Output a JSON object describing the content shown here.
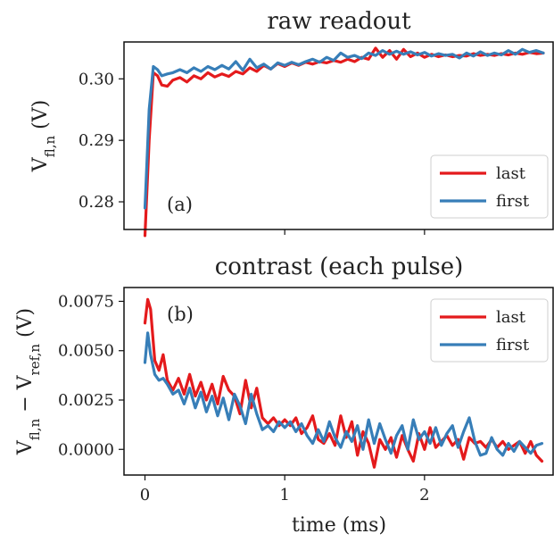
{
  "colors": {
    "last": "#e41a1c",
    "first": "#377eb8"
  },
  "chart_data": [
    {
      "type": "line",
      "title": "raw readout",
      "ylabel": "V_{fl,n} (V)",
      "panel_label": "(a)",
      "xlim": [
        -0.15,
        2.92
      ],
      "ylim": [
        0.2755,
        0.306
      ],
      "yticks": [
        0.28,
        0.29,
        0.3
      ],
      "ytick_labels": [
        "0.28",
        "0.29",
        "0.30"
      ],
      "xticks": [
        0,
        1,
        2
      ],
      "legend": {
        "placement": "lower-right",
        "entries": [
          "last",
          "first"
        ]
      },
      "series": [
        {
          "name": "last",
          "color": "#e41a1c",
          "x": [
            0.0,
            0.03,
            0.06,
            0.09,
            0.12,
            0.16,
            0.2,
            0.25,
            0.3,
            0.35,
            0.4,
            0.45,
            0.5,
            0.55,
            0.6,
            0.65,
            0.7,
            0.75,
            0.8,
            0.85,
            0.9,
            0.95,
            1.0,
            1.05,
            1.1,
            1.15,
            1.2,
            1.25,
            1.3,
            1.35,
            1.4,
            1.45,
            1.5,
            1.55,
            1.6,
            1.65,
            1.7,
            1.75,
            1.8,
            1.85,
            1.9,
            1.95,
            2.0,
            2.05,
            2.1,
            2.15,
            2.2,
            2.25,
            2.3,
            2.35,
            2.4,
            2.45,
            2.5,
            2.55,
            2.6,
            2.65,
            2.7,
            2.75,
            2.8,
            2.85
          ],
          "y": [
            0.2745,
            0.29,
            0.301,
            0.3005,
            0.299,
            0.2988,
            0.2998,
            0.3002,
            0.2995,
            0.3005,
            0.3,
            0.301,
            0.3003,
            0.3008,
            0.3004,
            0.3012,
            0.3008,
            0.3018,
            0.3012,
            0.3022,
            0.3016,
            0.3025,
            0.302,
            0.3026,
            0.3022,
            0.3027,
            0.3024,
            0.3028,
            0.3026,
            0.303,
            0.3027,
            0.3032,
            0.3028,
            0.3035,
            0.3032,
            0.305,
            0.3035,
            0.3046,
            0.3032,
            0.3048,
            0.3036,
            0.3042,
            0.3035,
            0.304,
            0.3036,
            0.3039,
            0.3036,
            0.3038,
            0.3037,
            0.3041,
            0.3038,
            0.304,
            0.3038,
            0.3041,
            0.3039,
            0.3042,
            0.304,
            0.3043,
            0.3041,
            0.3042
          ]
        },
        {
          "name": "first",
          "color": "#377eb8",
          "x": [
            0.0,
            0.03,
            0.06,
            0.09,
            0.12,
            0.16,
            0.2,
            0.25,
            0.3,
            0.35,
            0.4,
            0.45,
            0.5,
            0.55,
            0.6,
            0.65,
            0.7,
            0.75,
            0.8,
            0.85,
            0.9,
            0.95,
            1.0,
            1.05,
            1.1,
            1.15,
            1.2,
            1.25,
            1.3,
            1.35,
            1.4,
            1.45,
            1.5,
            1.55,
            1.6,
            1.65,
            1.7,
            1.75,
            1.8,
            1.85,
            1.9,
            1.95,
            2.0,
            2.05,
            2.1,
            2.15,
            2.2,
            2.25,
            2.3,
            2.35,
            2.4,
            2.45,
            2.5,
            2.55,
            2.6,
            2.65,
            2.7,
            2.75,
            2.8,
            2.85
          ],
          "y": [
            0.279,
            0.295,
            0.302,
            0.3015,
            0.3005,
            0.3008,
            0.301,
            0.3015,
            0.301,
            0.3018,
            0.3012,
            0.302,
            0.3015,
            0.3022,
            0.3016,
            0.3028,
            0.3014,
            0.3032,
            0.3018,
            0.3024,
            0.3016,
            0.3026,
            0.3022,
            0.3027,
            0.3023,
            0.3028,
            0.3032,
            0.3027,
            0.3035,
            0.303,
            0.3042,
            0.3035,
            0.3038,
            0.3033,
            0.3042,
            0.3038,
            0.3046,
            0.304,
            0.3045,
            0.304,
            0.3044,
            0.3039,
            0.3043,
            0.3037,
            0.3041,
            0.3038,
            0.304,
            0.3034,
            0.3042,
            0.3037,
            0.3044,
            0.3038,
            0.3042,
            0.3039,
            0.3046,
            0.304,
            0.3048,
            0.3043,
            0.3046,
            0.3042
          ]
        }
      ]
    },
    {
      "type": "line",
      "title": "contrast (each pulse)",
      "ylabel": "V_{fl,n} − V_{ref,n} (V)",
      "panel_label": "(b)",
      "xlabel": "time (ms)",
      "xlim": [
        -0.15,
        2.92
      ],
      "ylim": [
        -0.0013,
        0.0082
      ],
      "yticks": [
        0.0,
        0.0025,
        0.005,
        0.0075
      ],
      "ytick_labels": [
        "0.0000",
        "0.0025",
        "0.0050",
        "0.0075"
      ],
      "xticks": [
        0,
        1,
        2
      ],
      "xtick_labels": [
        "0",
        "1",
        "2"
      ],
      "legend": {
        "placement": "upper-right",
        "entries": [
          "last",
          "first"
        ]
      },
      "series": [
        {
          "name": "last",
          "color": "#e41a1c",
          "x": [
            0.0,
            0.02,
            0.04,
            0.07,
            0.1,
            0.13,
            0.16,
            0.2,
            0.24,
            0.28,
            0.32,
            0.36,
            0.4,
            0.44,
            0.48,
            0.52,
            0.56,
            0.6,
            0.64,
            0.68,
            0.72,
            0.76,
            0.8,
            0.84,
            0.88,
            0.92,
            0.96,
            1.0,
            1.04,
            1.08,
            1.12,
            1.16,
            1.2,
            1.24,
            1.28,
            1.32,
            1.36,
            1.4,
            1.44,
            1.48,
            1.52,
            1.56,
            1.6,
            1.64,
            1.68,
            1.72,
            1.76,
            1.8,
            1.84,
            1.88,
            1.92,
            1.96,
            2.0,
            2.04,
            2.08,
            2.12,
            2.16,
            2.2,
            2.24,
            2.28,
            2.32,
            2.36,
            2.4,
            2.44,
            2.48,
            2.52,
            2.56,
            2.6,
            2.64,
            2.68,
            2.72,
            2.76,
            2.8,
            2.84
          ],
          "y": [
            0.0064,
            0.0076,
            0.0071,
            0.0045,
            0.004,
            0.0048,
            0.0035,
            0.003,
            0.0036,
            0.0028,
            0.0038,
            0.0027,
            0.0034,
            0.0025,
            0.0033,
            0.0023,
            0.0037,
            0.003,
            0.0027,
            0.0018,
            0.0035,
            0.0021,
            0.0031,
            0.0016,
            0.0013,
            0.0016,
            0.0012,
            0.0015,
            0.0012,
            0.0016,
            0.0008,
            0.0011,
            0.0017,
            0.0005,
            0.0003,
            0.0008,
            0.0002,
            0.0017,
            0.0006,
            0.0014,
            -0.0003,
            0.0009,
            0.0003,
            -0.0009,
            0.0005,
            0.0,
            0.0006,
            -0.0004,
            0.0007,
            0.0,
            -0.0006,
            0.0008,
            0.0,
            0.0011,
            0.0001,
            0.0004,
            0.0007,
            0.0002,
            0.0005,
            -0.0005,
            0.0006,
            0.0003,
            0.0004,
            0.0001,
            0.0005,
            0.0001,
            0.0004,
            0.0,
            0.0002,
            0.0004,
            -0.0002,
            0.0004,
            -0.0003,
            -0.0006
          ]
        },
        {
          "name": "first",
          "color": "#377eb8",
          "x": [
            0.0,
            0.02,
            0.04,
            0.07,
            0.1,
            0.13,
            0.16,
            0.2,
            0.24,
            0.28,
            0.32,
            0.36,
            0.4,
            0.44,
            0.48,
            0.52,
            0.56,
            0.6,
            0.64,
            0.68,
            0.72,
            0.76,
            0.8,
            0.84,
            0.88,
            0.92,
            0.96,
            1.0,
            1.04,
            1.08,
            1.12,
            1.16,
            1.2,
            1.24,
            1.28,
            1.32,
            1.36,
            1.4,
            1.44,
            1.48,
            1.52,
            1.56,
            1.6,
            1.64,
            1.68,
            1.72,
            1.76,
            1.8,
            1.84,
            1.88,
            1.92,
            1.96,
            2.0,
            2.04,
            2.08,
            2.12,
            2.16,
            2.2,
            2.24,
            2.28,
            2.32,
            2.36,
            2.4,
            2.44,
            2.48,
            2.52,
            2.56,
            2.6,
            2.64,
            2.68,
            2.72,
            2.76,
            2.8,
            2.84
          ],
          "y": [
            0.0044,
            0.0059,
            0.0048,
            0.0038,
            0.0035,
            0.0036,
            0.0033,
            0.0028,
            0.003,
            0.0023,
            0.0031,
            0.0021,
            0.0029,
            0.0019,
            0.0027,
            0.0017,
            0.0026,
            0.0015,
            0.0028,
            0.0022,
            0.0013,
            0.0028,
            0.0018,
            0.001,
            0.0012,
            0.0009,
            0.0014,
            0.0011,
            0.0014,
            0.0009,
            0.0013,
            0.0007,
            0.0003,
            0.001,
            0.0004,
            0.0014,
            0.0006,
            0.0001,
            0.0009,
            0.0004,
            0.0012,
            0.0,
            0.0015,
            0.0003,
            0.0013,
            0.0005,
            -0.0002,
            0.0007,
            0.0012,
            0.0,
            0.0015,
            0.0005,
            0.0009,
            0.0003,
            0.0011,
            0.0002,
            0.0008,
            0.0012,
            0.0001,
            0.0009,
            0.0016,
            0.0004,
            -0.0003,
            -0.0002,
            0.0006,
            0.0,
            -0.0003,
            0.0003,
            -0.0001,
            0.0004,
            0.0001,
            -0.0002,
            0.0002,
            0.0003
          ]
        }
      ]
    }
  ]
}
